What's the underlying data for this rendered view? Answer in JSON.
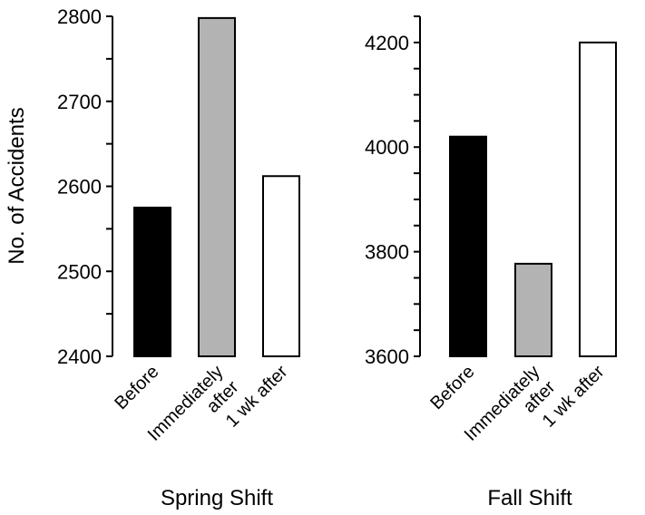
{
  "chart_data": [
    {
      "type": "bar",
      "title": "Spring Shift",
      "ylabel": "No. of Accidents",
      "ylim": [
        2400,
        2800
      ],
      "yticks": [
        2400,
        2500,
        2600,
        2700,
        2800
      ],
      "categories": [
        [
          "Before"
        ],
        [
          "Immediately",
          "after"
        ],
        [
          "1 wk after"
        ]
      ],
      "values": [
        2575,
        2798,
        2612
      ],
      "colors": [
        "#000000",
        "#b3b3b3",
        "#ffffff"
      ]
    },
    {
      "type": "bar",
      "title": "Fall Shift",
      "ylabel": "",
      "ylim": [
        3600,
        4250
      ],
      "yticks": [
        3600,
        3800,
        4000,
        4200
      ],
      "categories": [
        [
          "Before"
        ],
        [
          "Immediately",
          "after"
        ],
        [
          "1 wk after"
        ]
      ],
      "values": [
        4020,
        3777,
        4200
      ],
      "colors": [
        "#000000",
        "#b3b3b3",
        "#ffffff"
      ]
    }
  ]
}
